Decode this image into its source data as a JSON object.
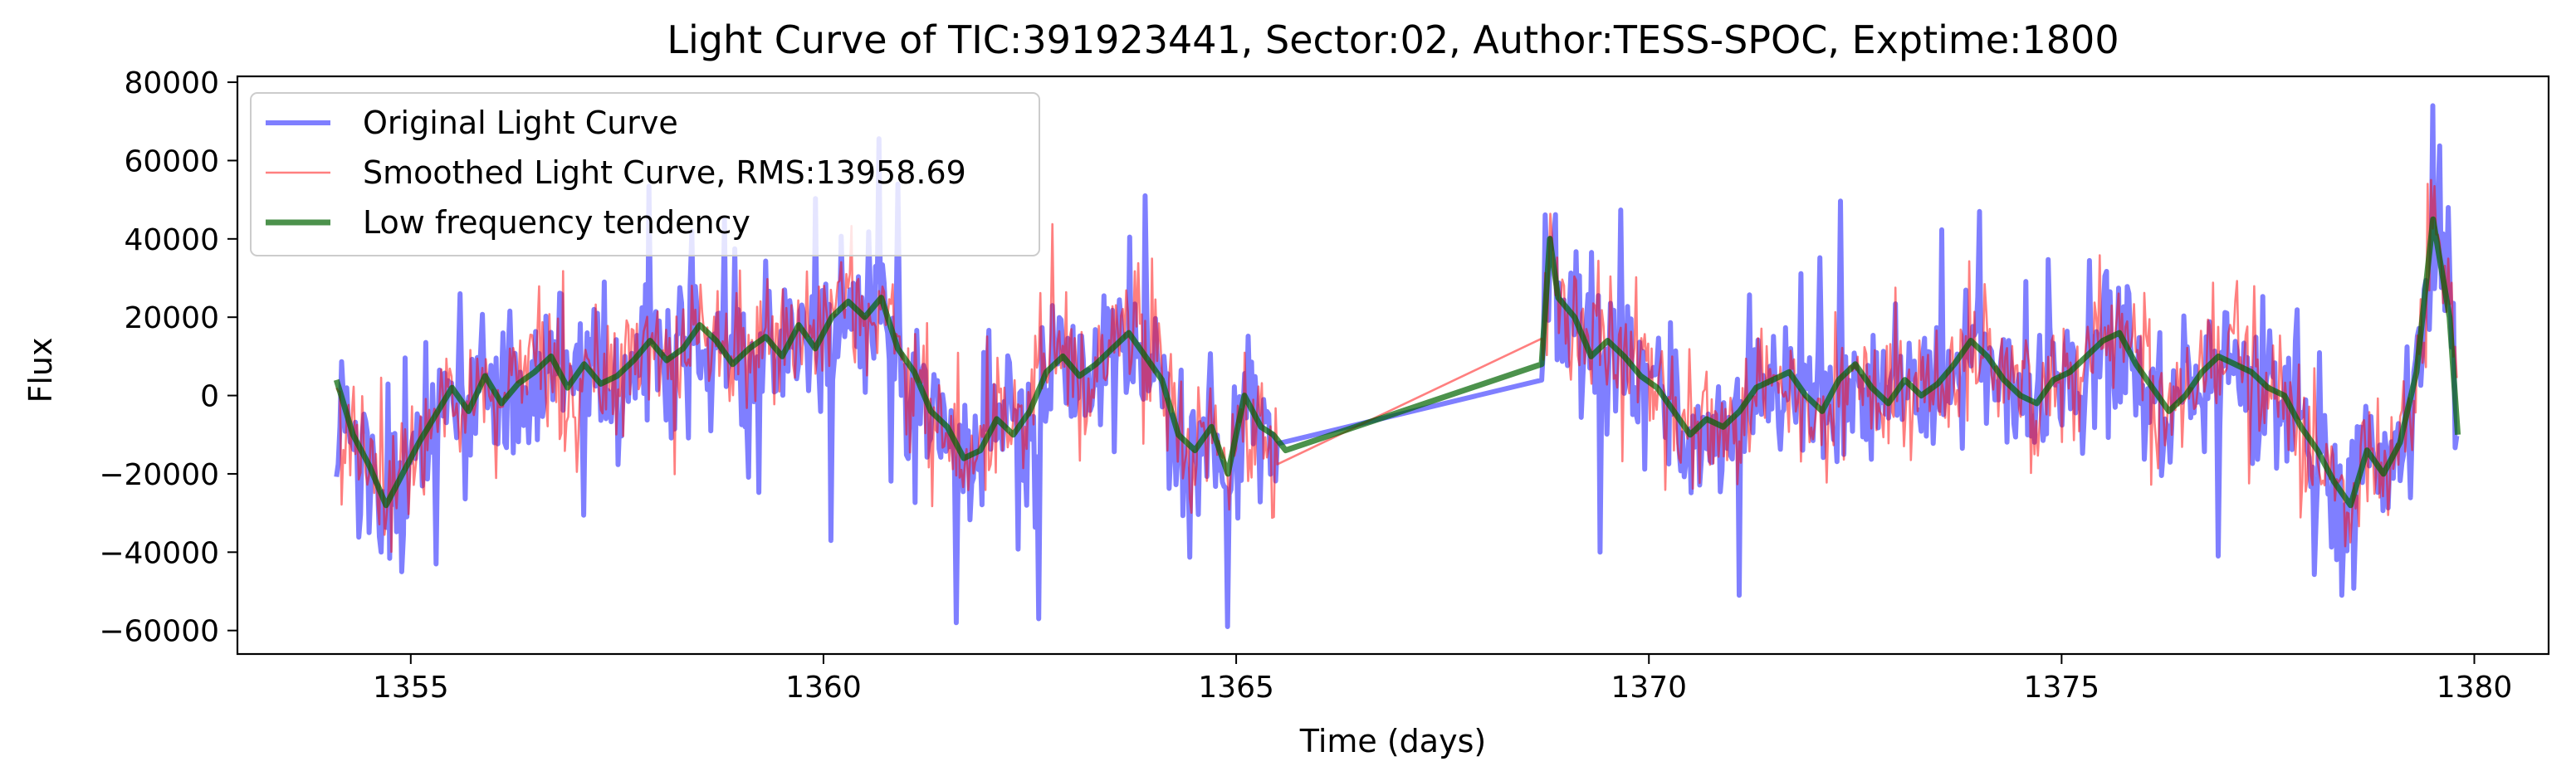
{
  "chart_data": {
    "type": "line",
    "title": "Light Curve of TIC:391923441, Sector:02, Author:TESS-SPOC, Exptime:1800",
    "xlabel": "Time (days)",
    "ylabel": "Flux",
    "xlim": [
      1352.9,
      1380.9
    ],
    "ylim": [
      -66000,
      81500
    ],
    "xticks": [
      1355,
      1360,
      1365,
      1370,
      1375,
      1380
    ],
    "yticks": [
      -60000,
      -40000,
      -20000,
      0,
      20000,
      40000,
      60000,
      80000
    ],
    "grid": false,
    "legend_position": "upper-left",
    "gap": [
      1365.5,
      1368.7
    ],
    "series": [
      {
        "name": "Original Light Curve",
        "color": "#0000ff",
        "alpha": 0.5,
        "x_start": 1354.1,
        "x_end": 1379.8,
        "x_step": 0.0208,
        "noise_sigma": 13000,
        "extremes": [
          {
            "x": 1354.5,
            "y": -35000
          },
          {
            "x": 1354.9,
            "y": -45000
          },
          {
            "x": 1355.3,
            "y": -43000
          },
          {
            "x": 1355.6,
            "y": 26000
          },
          {
            "x": 1358.4,
            "y": 42000
          },
          {
            "x": 1360.1,
            "y": -37000
          },
          {
            "x": 1360.9,
            "y": 54000
          },
          {
            "x": 1361.6,
            "y": -58000
          },
          {
            "x": 1362.6,
            "y": -57000
          },
          {
            "x": 1363.9,
            "y": 51000
          },
          {
            "x": 1364.9,
            "y": -59000
          },
          {
            "x": 1369.4,
            "y": -40000
          },
          {
            "x": 1371.1,
            "y": -51000
          },
          {
            "x": 1374.0,
            "y": 47000
          },
          {
            "x": 1376.9,
            "y": -41000
          },
          {
            "x": 1378.4,
            "y": -51000
          },
          {
            "x": 1379.5,
            "y": 74000
          }
        ]
      },
      {
        "name": "Smoothed Light Curve, RMS:13958.69",
        "color": "#ff0000",
        "alpha": 0.5,
        "x_start": 1354.1,
        "x_end": 1379.8,
        "x_step": 0.0208,
        "noise_sigma": 10500
      },
      {
        "name": "Low frequency tendency",
        "color": "#006400",
        "alpha": 0.7,
        "x": [
          1354.1,
          1354.3,
          1354.5,
          1354.7,
          1354.9,
          1355.1,
          1355.3,
          1355.5,
          1355.7,
          1355.9,
          1356.1,
          1356.3,
          1356.5,
          1356.7,
          1356.9,
          1357.1,
          1357.3,
          1357.5,
          1357.7,
          1357.9,
          1358.1,
          1358.3,
          1358.5,
          1358.7,
          1358.9,
          1359.1,
          1359.3,
          1359.5,
          1359.7,
          1359.9,
          1360.1,
          1360.3,
          1360.5,
          1360.7,
          1360.9,
          1361.1,
          1361.3,
          1361.5,
          1361.7,
          1361.9,
          1362.1,
          1362.3,
          1362.5,
          1362.7,
          1362.9,
          1363.1,
          1363.3,
          1363.5,
          1363.7,
          1363.9,
          1364.1,
          1364.3,
          1364.5,
          1364.7,
          1364.9,
          1365.1,
          1365.3,
          1365.45,
          1365.6,
          1368.7,
          1368.8,
          1368.9,
          1369.1,
          1369.3,
          1369.5,
          1369.7,
          1369.9,
          1370.1,
          1370.3,
          1370.5,
          1370.7,
          1370.9,
          1371.1,
          1371.3,
          1371.5,
          1371.7,
          1371.9,
          1372.1,
          1372.3,
          1372.5,
          1372.7,
          1372.9,
          1373.1,
          1373.3,
          1373.5,
          1373.7,
          1373.9,
          1374.1,
          1374.3,
          1374.5,
          1374.7,
          1374.9,
          1375.1,
          1375.3,
          1375.5,
          1375.7,
          1375.9,
          1376.1,
          1376.3,
          1376.5,
          1376.7,
          1376.9,
          1377.1,
          1377.3,
          1377.5,
          1377.7,
          1377.9,
          1378.1,
          1378.3,
          1378.5,
          1378.7,
          1378.9,
          1379.1,
          1379.3,
          1379.5,
          1379.7,
          1379.8
        ],
        "y": [
          4000,
          -10000,
          -18000,
          -28000,
          -20000,
          -12000,
          -5000,
          2000,
          -4000,
          5000,
          -2000,
          3000,
          6000,
          10000,
          2000,
          8000,
          3000,
          5000,
          9000,
          14000,
          9000,
          12000,
          18000,
          14000,
          8000,
          12000,
          15000,
          10000,
          18000,
          12000,
          20000,
          24000,
          20000,
          25000,
          12000,
          6000,
          -4000,
          -8000,
          -16000,
          -14000,
          -6000,
          -10000,
          -4000,
          6000,
          10000,
          5000,
          8000,
          12000,
          16000,
          10000,
          4000,
          -10000,
          -14000,
          -8000,
          -20000,
          0,
          -8000,
          -10000,
          -14000,
          8000,
          40000,
          25000,
          20000,
          10000,
          14000,
          10000,
          5000,
          2000,
          -4000,
          -10000,
          -6000,
          -8000,
          -4000,
          2000,
          4000,
          6000,
          0,
          -4000,
          4000,
          8000,
          2000,
          -2000,
          4000,
          0,
          3000,
          8000,
          14000,
          10000,
          4000,
          0,
          -2000,
          4000,
          6000,
          10000,
          14000,
          16000,
          8000,
          2000,
          -4000,
          0,
          6000,
          10000,
          8000,
          6000,
          2000,
          0,
          -8000,
          -14000,
          -22000,
          -28000,
          -14000,
          -20000,
          -12000,
          6000,
          45000,
          20000,
          -10000
        ]
      }
    ]
  }
}
